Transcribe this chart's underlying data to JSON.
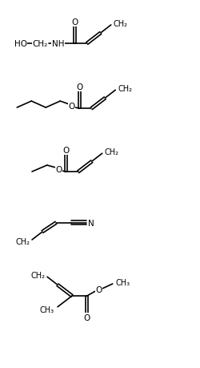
{
  "figsize": [
    2.5,
    4.6
  ],
  "dpi": 100,
  "bg_color": "#ffffff",
  "line_color": "#000000",
  "line_width": 1.2,
  "font_size": 7.5,
  "xlim": [
    0,
    10
  ],
  "ylim": [
    0,
    18.4
  ]
}
